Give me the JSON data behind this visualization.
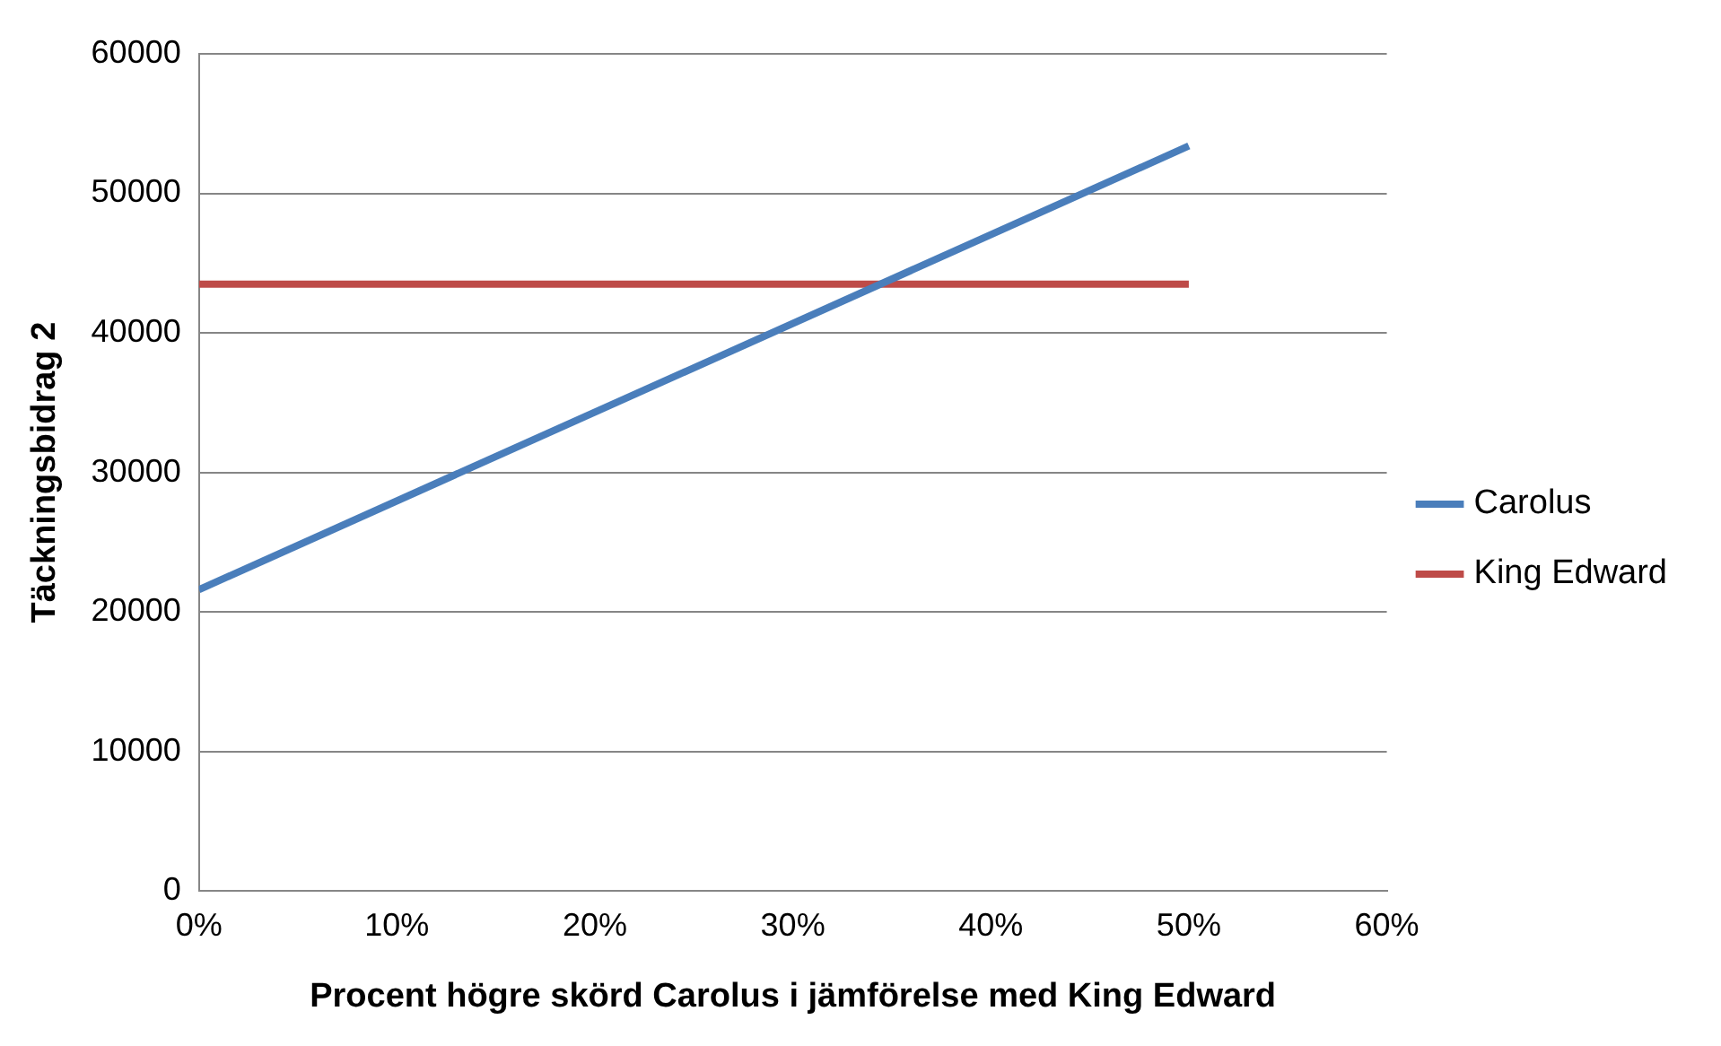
{
  "chart_data": {
    "type": "line",
    "xlabel": "Procent högre skörd Carolus i jämförelse med King Edward",
    "ylabel": "Täckningsbidrag 2",
    "x": [
      0,
      50
    ],
    "series": [
      {
        "name": "Carolus",
        "color": "#4a7ebb",
        "values": [
          21600,
          53400
        ]
      },
      {
        "name": "King Edward",
        "color": "#be4b48",
        "values": [
          43500,
          43500
        ]
      }
    ],
    "xlim": [
      0,
      60
    ],
    "xticks": [
      {
        "value": 0,
        "label": "0%"
      },
      {
        "value": 10,
        "label": "10%"
      },
      {
        "value": 20,
        "label": "20%"
      },
      {
        "value": 30,
        "label": "30%"
      },
      {
        "value": 40,
        "label": "40%"
      },
      {
        "value": 50,
        "label": "50%"
      },
      {
        "value": 60,
        "label": "60%"
      }
    ],
    "ylim": [
      0,
      60000
    ],
    "yticks": [
      0,
      10000,
      20000,
      30000,
      40000,
      50000,
      60000
    ],
    "grid": "y",
    "legend": "right",
    "marker": "none",
    "line_style": "solid"
  }
}
